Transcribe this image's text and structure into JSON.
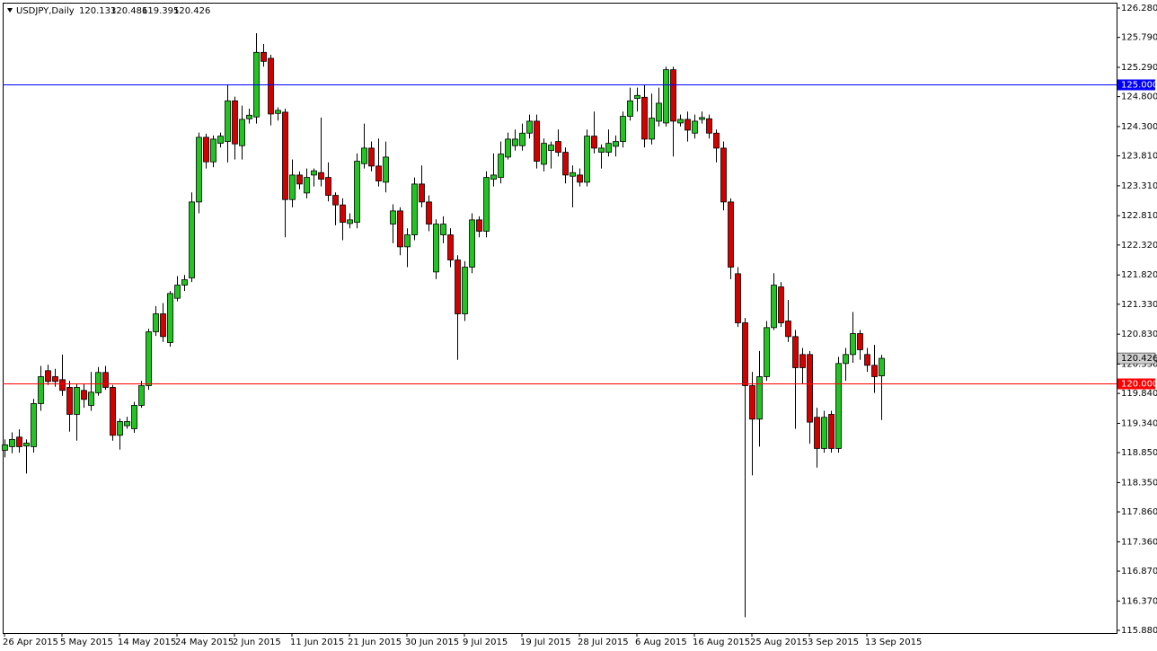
{
  "chart_data": {
    "type": "candlestick",
    "title": "USDJPY,Daily",
    "categories": [
      "26 Apr 2015",
      null,
      null,
      null,
      null,
      null,
      null,
      null,
      "5 May 2015",
      null,
      null,
      null,
      null,
      null,
      null,
      null,
      "14 May 2015",
      null,
      null,
      null,
      null,
      null,
      null,
      null,
      "24 May 2015",
      null,
      null,
      null,
      null,
      null,
      null,
      null,
      "2 Jun 2015",
      null,
      null,
      null,
      null,
      null,
      null,
      null,
      "11 Jun 2015",
      null,
      null,
      null,
      null,
      null,
      null,
      null,
      "21 Jun 2015",
      null,
      null,
      null,
      null,
      null,
      null,
      null,
      "30 Jun 2015",
      null,
      null,
      null,
      null,
      null,
      null,
      null,
      "9 Jul 2015",
      null,
      null,
      null,
      null,
      null,
      null,
      null,
      "19 Jul 2015",
      null,
      null,
      null,
      null,
      null,
      null,
      null,
      "28 Jul 2015",
      null,
      null,
      null,
      null,
      null,
      null,
      null,
      "6 Aug 2015",
      null,
      null,
      null,
      null,
      null,
      null,
      null,
      "16 Aug 2015",
      null,
      null,
      null,
      null,
      null,
      null,
      null,
      "25 Aug 2015",
      null,
      null,
      null,
      null,
      null,
      null,
      null,
      "3 Sep 2015",
      null,
      null,
      null,
      null,
      null,
      null,
      null,
      "13 Sep 2015",
      null,
      null
    ],
    "open": [
      118.89,
      118.95,
      119.11,
      118.96,
      118.95,
      119.67,
      120.22,
      120.12,
      120.07,
      119.94,
      119.49,
      119.89,
      119.64,
      119.85,
      120.19,
      119.94,
      119.14,
      119.3,
      119.25,
      119.64,
      119.97,
      120.87,
      121.17,
      120.69,
      121.43,
      121.65,
      121.77,
      123.04,
      124.12,
      123.71,
      124.02,
      124.05,
      124.73,
      123.98,
      124.43,
      124.46,
      125.54,
      125.44,
      124.52,
      124.54,
      123.08,
      123.49,
      123.19,
      123.49,
      123.53,
      123.45,
      123.15,
      122.99,
      122.68,
      122.7,
      123.68,
      123.94,
      123.64,
      123.37,
      122.67,
      122.89,
      122.29,
      122.49,
      123.34,
      123.04,
      121.87,
      122.49,
      122.49,
      122.07,
      121.17,
      121.95,
      122.74,
      122.55,
      123.42,
      123.45,
      123.79,
      123.98,
      123.98,
      124.19,
      124.39,
      123.67,
      123.9,
      124.05,
      123.87,
      123.47,
      123.49,
      123.37,
      124.14,
      123.87,
      123.87,
      123.97,
      124.05,
      124.47,
      124.77,
      124.79,
      124.09,
      124.39,
      124.36,
      125.25,
      124.36,
      124.42,
      124.19,
      124.42,
      124.43,
      124.19,
      123.94,
      123.04,
      121.84,
      121.02,
      119.97,
      119.41,
      120.12,
      120.94,
      121.62,
      121.05,
      120.79,
      120.49,
      120.49,
      119.44,
      118.92,
      119.49,
      118.92,
      120.34,
      120.49,
      120.84,
      120.49,
      120.31,
      120.133
    ],
    "high": [
      119.07,
      119.19,
      119.24,
      119.07,
      119.75,
      120.3,
      120.32,
      120.25,
      120.49,
      120.05,
      120.0,
      120.0,
      120.2,
      120.28,
      120.3,
      119.98,
      119.42,
      119.45,
      119.7,
      120.05,
      120.92,
      121.3,
      121.35,
      121.55,
      121.8,
      121.82,
      123.2,
      124.2,
      124.18,
      124.15,
      124.2,
      125.0,
      124.8,
      124.65,
      124.6,
      125.86,
      125.68,
      125.5,
      124.62,
      124.6,
      123.75,
      123.55,
      123.6,
      123.6,
      124.45,
      123.7,
      123.2,
      123.1,
      122.85,
      123.85,
      124.35,
      124.05,
      124.1,
      124.05,
      123.0,
      122.95,
      122.6,
      123.45,
      123.65,
      123.15,
      122.75,
      122.8,
      122.6,
      122.15,
      122.05,
      122.85,
      122.8,
      123.55,
      123.85,
      124.05,
      124.2,
      124.25,
      124.35,
      124.5,
      124.5,
      124.1,
      124.05,
      124.25,
      123.95,
      123.65,
      123.6,
      124.25,
      124.55,
      124.0,
      124.25,
      124.15,
      124.55,
      124.95,
      124.95,
      125.0,
      124.85,
      124.95,
      125.3,
      125.3,
      124.5,
      124.55,
      124.5,
      124.55,
      124.5,
      124.25,
      124.05,
      123.1,
      121.95,
      121.1,
      120.2,
      120.55,
      121.05,
      121.85,
      121.7,
      121.4,
      120.9,
      120.6,
      120.55,
      119.6,
      119.55,
      119.55,
      120.45,
      120.6,
      121.2,
      120.9,
      120.6,
      120.65,
      120.486
    ],
    "low": [
      118.77,
      118.84,
      118.85,
      118.5,
      118.85,
      119.55,
      119.98,
      119.95,
      119.8,
      119.2,
      119.05,
      119.6,
      119.55,
      119.8,
      119.9,
      119.05,
      118.9,
      119.25,
      119.18,
      119.6,
      119.9,
      120.8,
      120.7,
      120.62,
      121.38,
      121.55,
      121.7,
      122.85,
      123.6,
      123.62,
      123.95,
      123.7,
      123.75,
      123.75,
      124.35,
      124.35,
      125.3,
      124.32,
      124.4,
      122.45,
      122.95,
      123.25,
      123.1,
      123.3,
      123.3,
      123.05,
      122.65,
      122.4,
      122.6,
      122.6,
      123.6,
      123.55,
      123.3,
      123.2,
      122.35,
      122.15,
      121.95,
      122.4,
      122.95,
      122.55,
      121.75,
      122.35,
      121.95,
      120.4,
      121.05,
      121.85,
      122.45,
      122.45,
      123.3,
      123.35,
      123.75,
      123.9,
      123.9,
      124.1,
      123.6,
      123.55,
      123.6,
      123.8,
      123.35,
      122.95,
      123.3,
      123.3,
      123.85,
      123.6,
      123.8,
      123.8,
      123.95,
      124.4,
      124.55,
      123.95,
      124.0,
      124.3,
      124.3,
      123.8,
      124.3,
      124.05,
      124.1,
      124.35,
      124.1,
      123.7,
      122.9,
      121.75,
      120.95,
      116.1,
      118.47,
      118.95,
      120.05,
      120.9,
      120.95,
      120.7,
      119.25,
      120.0,
      119.0,
      118.6,
      118.85,
      118.85,
      118.85,
      120.05,
      120.35,
      120.4,
      120.2,
      119.85,
      119.395
    ],
    "close": [
      118.98,
      119.07,
      118.95,
      119.01,
      119.67,
      120.12,
      120.04,
      120.04,
      119.89,
      119.49,
      119.94,
      119.74,
      119.86,
      120.19,
      119.94,
      119.14,
      119.37,
      119.37,
      119.64,
      119.97,
      120.87,
      121.17,
      120.79,
      121.51,
      121.65,
      121.74,
      123.04,
      124.12,
      123.71,
      124.09,
      124.14,
      124.73,
      124.01,
      124.42,
      124.49,
      125.54,
      125.39,
      124.51,
      124.57,
      123.08,
      123.49,
      123.34,
      123.45,
      123.56,
      123.42,
      123.15,
      122.99,
      122.7,
      122.74,
      123.72,
      123.94,
      123.64,
      123.39,
      123.79,
      122.89,
      122.29,
      122.49,
      123.34,
      123.04,
      122.67,
      122.67,
      122.67,
      122.07,
      121.17,
      121.95,
      122.74,
      122.55,
      123.45,
      123.49,
      123.84,
      124.09,
      124.09,
      124.19,
      124.39,
      123.72,
      124.02,
      123.99,
      123.87,
      123.49,
      123.53,
      123.37,
      124.14,
      123.94,
      123.94,
      124.02,
      124.05,
      124.47,
      124.73,
      124.82,
      124.09,
      124.44,
      124.69,
      125.25,
      124.39,
      124.42,
      124.24,
      124.39,
      124.45,
      124.19,
      123.94,
      123.04,
      121.95,
      121.02,
      119.97,
      119.41,
      120.12,
      120.94,
      121.65,
      121.02,
      120.79,
      120.27,
      120.27,
      119.36,
      118.92,
      119.44,
      118.92,
      120.34,
      120.49,
      120.84,
      120.57,
      120.31,
      120.12,
      120.426
    ],
    "up_color": "#22c422",
    "down_color": "#d40000",
    "wick_color": "#000000",
    "ylim": [
      115.835,
      126.37
    ],
    "yticks": [
      {
        "value": 126.28,
        "label": "126.280"
      },
      {
        "value": 125.79,
        "label": "125.790"
      },
      {
        "value": 125.29,
        "label": "125.290"
      },
      {
        "value": 124.8,
        "label": "124.800"
      },
      {
        "value": 124.3,
        "label": "124.300"
      },
      {
        "value": 123.81,
        "label": "123.810"
      },
      {
        "value": 123.31,
        "label": "123.310"
      },
      {
        "value": 122.81,
        "label": "122.810"
      },
      {
        "value": 122.32,
        "label": "122.320"
      },
      {
        "value": 121.82,
        "label": "121.820"
      },
      {
        "value": 121.33,
        "label": "121.330"
      },
      {
        "value": 120.83,
        "label": "120.830"
      },
      {
        "value": 120.33,
        "label": "120.330"
      },
      {
        "value": 119.84,
        "label": "119.840"
      },
      {
        "value": 119.34,
        "label": "119.340"
      },
      {
        "value": 118.85,
        "label": "118.850"
      },
      {
        "value": 118.35,
        "label": "118.350"
      },
      {
        "value": 117.86,
        "label": "117.860"
      },
      {
        "value": 117.36,
        "label": "117.360"
      },
      {
        "value": 116.87,
        "label": "116.870"
      },
      {
        "value": 116.37,
        "label": "116.370"
      },
      {
        "value": 115.88,
        "label": "115.880"
      }
    ],
    "hlines": [
      {
        "value": 125,
        "label": "125.000",
        "color": "#0000ff"
      },
      {
        "value": 120,
        "label": "120.000",
        "color": "#ff0000"
      }
    ],
    "grid": false
  }
}
